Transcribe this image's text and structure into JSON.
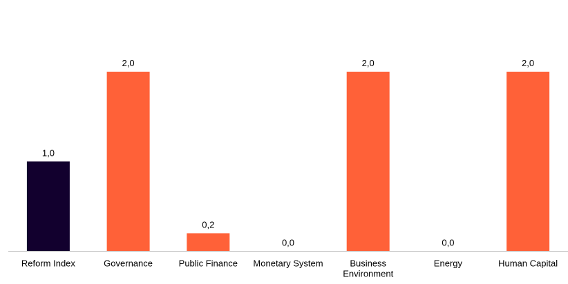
{
  "chart_data": {
    "type": "bar",
    "categories": [
      [
        "Reform Index"
      ],
      [
        "Governance"
      ],
      [
        "Public Finance"
      ],
      [
        "Monetary System"
      ],
      [
        "Business",
        "Environment"
      ],
      [
        "Energy"
      ],
      [
        "Human Capital"
      ]
    ],
    "values": [
      1.0,
      2.0,
      0.2,
      0.0,
      2.0,
      0.0,
      2.0
    ],
    "value_labels": [
      "1,0",
      "2,0",
      "0,2",
      "0,0",
      "2,0",
      "0,0",
      "2,0"
    ],
    "bar_colors": [
      "#12002e",
      "#ff6138",
      "#ff6138",
      "#ff6138",
      "#ff6138",
      "#ff6138",
      "#ff6138"
    ],
    "ylim": [
      0,
      2.0
    ],
    "grid": false,
    "legend": "none",
    "title": "",
    "xlabel": "",
    "ylabel": ""
  }
}
